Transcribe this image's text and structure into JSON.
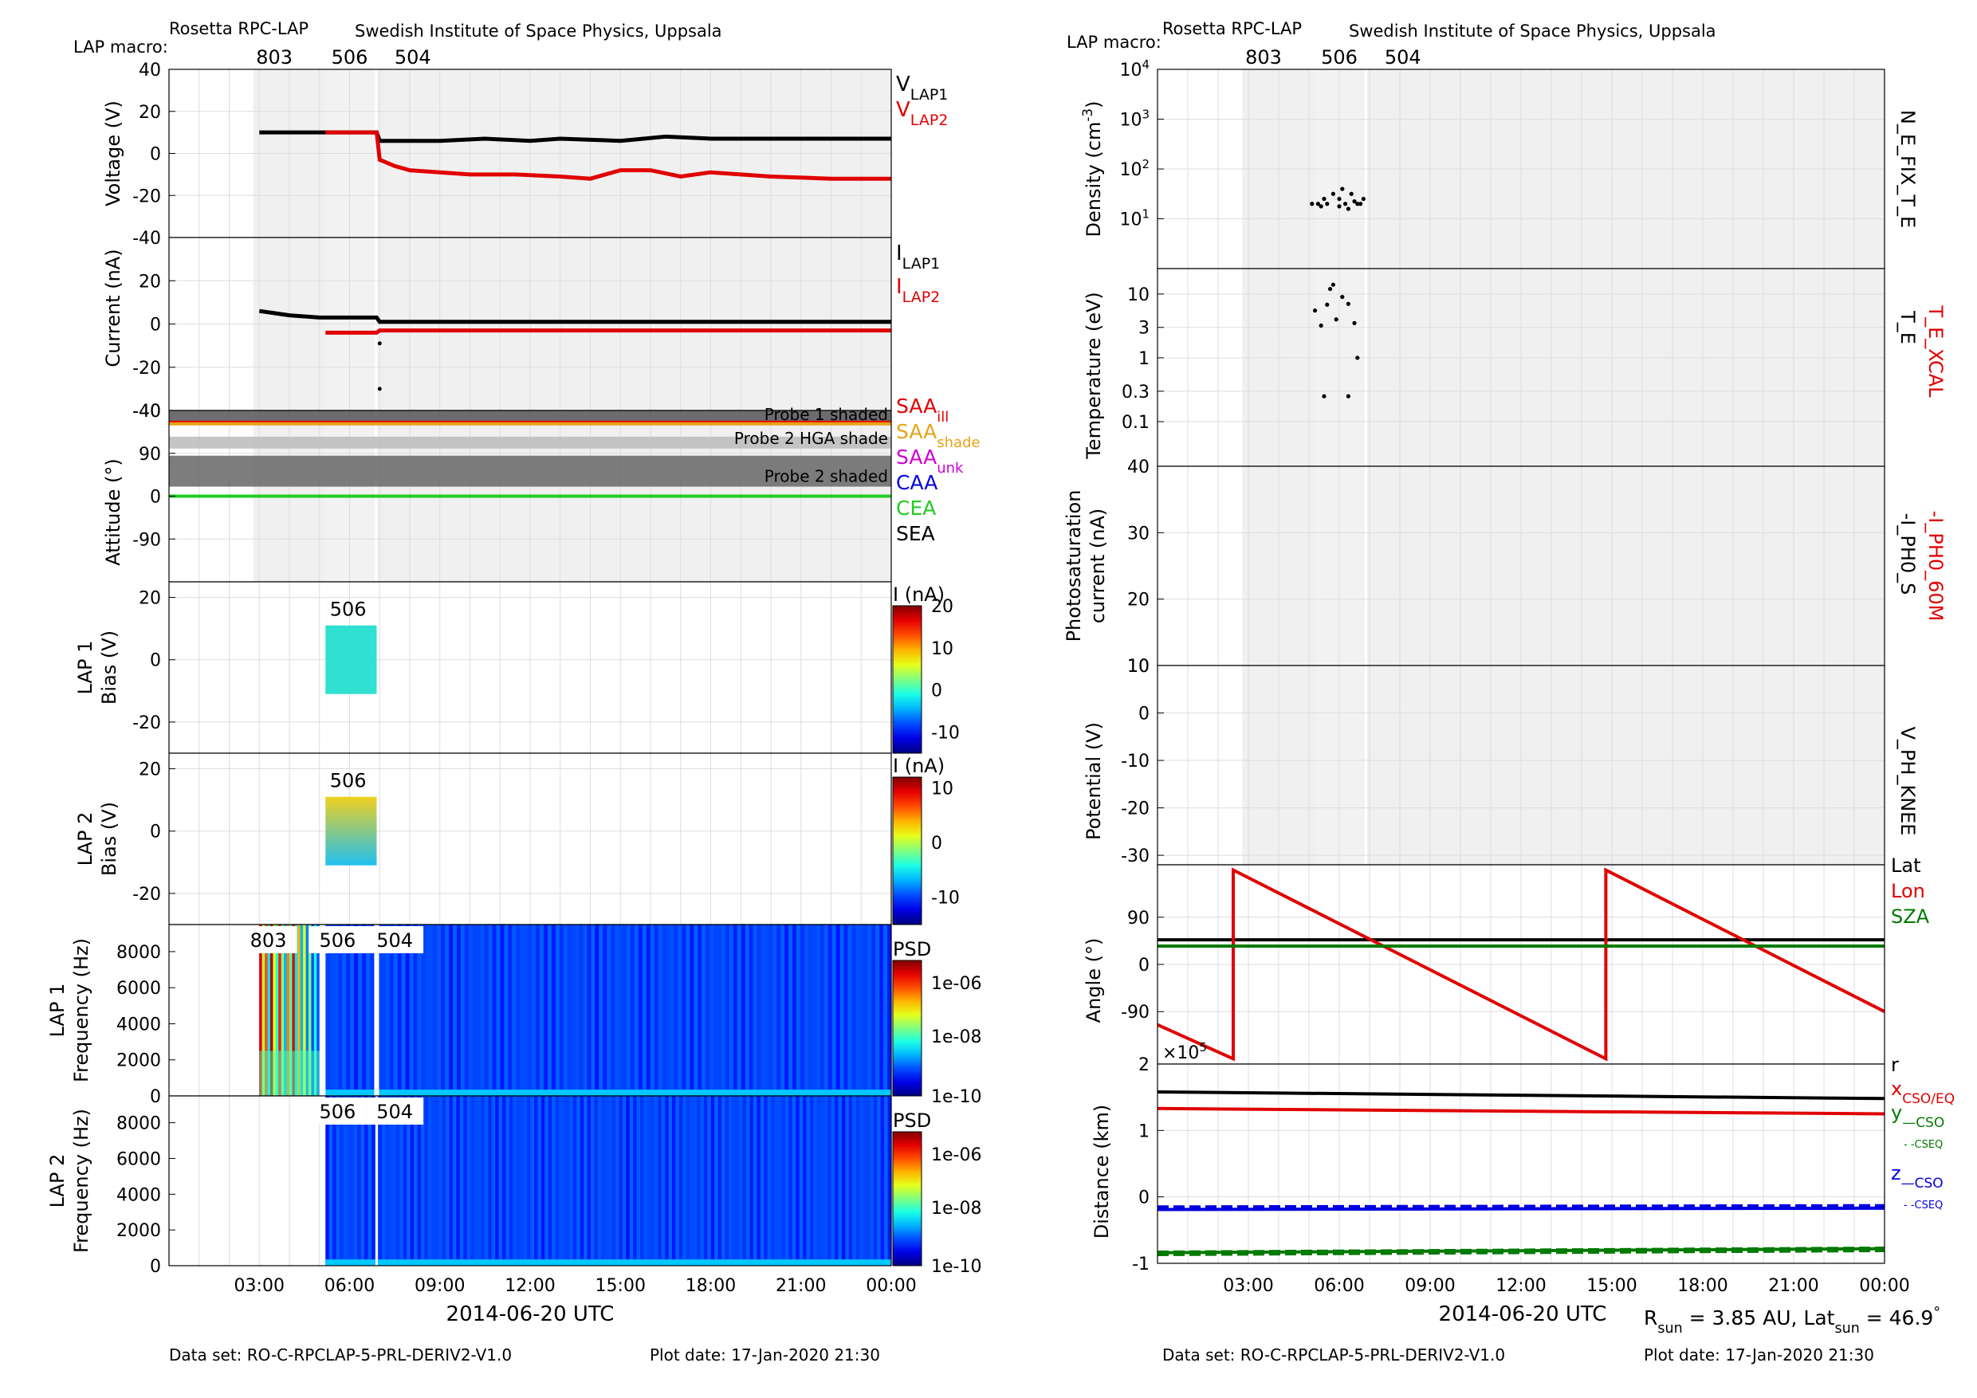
{
  "left": {
    "instrument": "Rosetta RPC-LAP",
    "institute": "Swedish Institute of Space Physics, Uppsala",
    "macro_label": "LAP macro:",
    "macros": [
      {
        "label": "803",
        "at": 3.5
      },
      {
        "label": "506",
        "at": 6.0
      },
      {
        "label": "504",
        "at": 8.1
      }
    ],
    "xlabel": "2014-06-20 UTC",
    "xticks": [
      "03:00",
      "06:00",
      "09:00",
      "12:00",
      "15:00",
      "18:00",
      "21:00",
      "00:00"
    ],
    "dataset": "Data set: RO-C-RPCLAP-5-PRL-DERIV2-V1.0",
    "plotdate": "Plot date: 17-Jan-2020 21:30"
  },
  "right": {
    "instrument": "Rosetta RPC-LAP",
    "institute": "Swedish Institute of Space Physics, Uppsala",
    "macro_label": "LAP macro:",
    "macros": [
      {
        "label": "803",
        "at": 3.5
      },
      {
        "label": "506",
        "at": 6.0
      },
      {
        "label": "504",
        "at": 8.1
      }
    ],
    "xlabel": "2014-06-20 UTC",
    "xticks": [
      "03:00",
      "06:00",
      "09:00",
      "12:00",
      "15:00",
      "18:00",
      "21:00",
      "00:00"
    ],
    "dataset": "Data set: RO-C-RPCLAP-5-PRL-DERIV2-V1.0",
    "plotdate": "Plot date: 17-Jan-2020 21:30",
    "footer_html": "R<tspan baseline-shift=\"sub\" font-size=\"70%\">sun</tspan> = 3.85 AU, Lat<tspan baseline-shift=\"sub\" font-size=\"70%\">sun</tspan> = 46.9<tspan baseline-shift=\"super\" font-size=\"70%\">°</tspan>"
  },
  "colors": {
    "black": "#000000",
    "red": "#e00000",
    "orange": "#e8a317",
    "magenta": "#d000d0",
    "blue": "#0000e0",
    "green": "#20cc20",
    "darkgreen": "#007a00",
    "shade": "#f0f0f0"
  },
  "chart_data": [
    {
      "type": "line",
      "panel": "voltage",
      "ylabel": "Voltage (V)",
      "xlabel": "2014-06-20 UTC",
      "xlim_hours": [
        0,
        24
      ],
      "ylim": [
        -40,
        40
      ],
      "yticks": [
        -40,
        -20,
        0,
        20,
        40
      ],
      "series": [
        {
          "name": "V_LAP1",
          "label_main": "V",
          "label_sub": "LAP1",
          "color": "black",
          "x": [
            3.0,
            4.5,
            5.2,
            6.0,
            6.9,
            7.0,
            8.0,
            9.0,
            10.5,
            12.0,
            13.0,
            15.0,
            16.5,
            18.0,
            20.0,
            22.0,
            24.0
          ],
          "y": [
            10,
            10,
            10,
            10,
            10,
            6,
            6,
            6,
            7,
            6,
            7,
            6,
            8,
            7,
            7,
            7,
            7
          ]
        },
        {
          "name": "V_LAP2",
          "label_main": "V",
          "label_sub": "LAP2",
          "color": "red",
          "x": [
            5.2,
            6.0,
            6.9,
            7.0,
            7.5,
            8.0,
            9.0,
            10.0,
            11.5,
            13.0,
            14.0,
            15.0,
            16.0,
            17.0,
            18.0,
            20.0,
            22.0,
            24.0
          ],
          "y": [
            10,
            10,
            10,
            -3,
            -6,
            -8,
            -9,
            -10,
            -10,
            -11,
            -12,
            -8,
            -8,
            -11,
            -9,
            -11,
            -12,
            -12
          ]
        }
      ],
      "legend": [
        "V_LAP1",
        "V_LAP2"
      ]
    },
    {
      "type": "line",
      "panel": "current",
      "ylabel": "Current (nA)",
      "ylim": [
        -40,
        40
      ],
      "yticks": [
        -40,
        -20,
        0,
        20
      ],
      "series": [
        {
          "name": "I_LAP1",
          "label_main": "I",
          "label_sub": "LAP1",
          "color": "black",
          "x": [
            3.0,
            3.5,
            4.0,
            4.5,
            5.0,
            6.0,
            6.9,
            7.0,
            12.0,
            24.0
          ],
          "y": [
            6,
            5,
            4,
            3.5,
            3,
            3,
            3,
            1,
            1,
            1
          ]
        },
        {
          "name": "I_LAP2",
          "label_main": "I",
          "label_sub": "LAP2",
          "color": "red",
          "x": [
            5.2,
            6.9,
            7.0,
            24.0
          ],
          "y": [
            -4,
            -4,
            -3,
            -3
          ]
        }
      ],
      "extra_points": [
        {
          "x": 7.0,
          "y": -9
        },
        {
          "x": 7.0,
          "y": -30
        }
      ]
    },
    {
      "type": "area",
      "panel": "attitude",
      "ylabel": "Attitude (°)",
      "ylim": [
        -180,
        180
      ],
      "yticks": [
        -90,
        0,
        90
      ],
      "bands": [
        {
          "text": "Probe 1 shaded",
          "from": 150,
          "to": 180,
          "color": "#555555"
        },
        {
          "text": "Probe 2 HGA shade",
          "from": 100,
          "to": 125,
          "color": "#bbbbbb"
        },
        {
          "text": "Probe 2 shaded",
          "from": 20,
          "to": 85,
          "color": "#666666"
        }
      ],
      "series": [
        {
          "name": "SAA_ill",
          "label_main": "SAA",
          "label_sub": "ill",
          "color": "red",
          "value": 155
        },
        {
          "name": "SAA_shade",
          "label_main": "SAA",
          "label_sub": "shade",
          "color": "orange",
          "value": 152
        },
        {
          "name": "SAA_unk",
          "label_main": "SAA",
          "label_sub": "unk",
          "color": "magenta",
          "value": null
        },
        {
          "name": "CAA",
          "label_main": "CAA",
          "label_sub": "",
          "color": "blue",
          "value": null
        },
        {
          "name": "CEA",
          "label_main": "CEA",
          "label_sub": "",
          "color": "green",
          "value": 0
        },
        {
          "name": "SEA",
          "label_main": "SEA",
          "label_sub": "",
          "color": "black",
          "value": null
        }
      ]
    },
    {
      "type": "heatmap",
      "panel": "lap1-bias",
      "ylabel": "LAP 1",
      "ylabel2": "Bias (V)",
      "ylim": [
        -30,
        25
      ],
      "yticks": [
        -20,
        0,
        20
      ],
      "macro_label": "506",
      "block": {
        "x0": 5.2,
        "x1": 6.9,
        "y0": -11,
        "y1": 11
      },
      "colorbar": {
        "title": "I (nA)",
        "ticks": [
          20,
          10,
          0,
          -10
        ],
        "range": [
          -15,
          20
        ]
      }
    },
    {
      "type": "heatmap",
      "panel": "lap2-bias",
      "ylabel": "LAP 2",
      "ylabel2": "Bias (V)",
      "ylim": [
        -30,
        25
      ],
      "yticks": [
        -20,
        0,
        20
      ],
      "macro_label": "506",
      "block": {
        "x0": 5.2,
        "x1": 6.9,
        "y0": -11,
        "y1": 11
      },
      "colorbar": {
        "title": "I (nA)",
        "ticks": [
          10,
          0,
          -10
        ],
        "range": [
          -15,
          12
        ]
      }
    },
    {
      "type": "heatmap",
      "panel": "lap1-psd",
      "ylabel": "LAP 1",
      "ylabel2": "Frequency (Hz)",
      "ylim": [
        0,
        9500
      ],
      "yticks": [
        0,
        2000,
        4000,
        6000,
        8000
      ],
      "macro_labels": [
        {
          "label": "803",
          "at": 3.3
        },
        {
          "label": "506",
          "at": 5.6
        },
        {
          "label": "504",
          "at": 7.5
        }
      ],
      "colorbar": {
        "title": "PSD",
        "ticks": [
          "1e-06",
          "1e-08",
          "1e-10"
        ]
      }
    },
    {
      "type": "heatmap",
      "panel": "lap2-psd",
      "ylabel": "LAP 2",
      "ylabel2": "Frequency (Hz)",
      "ylim": [
        0,
        9500
      ],
      "yticks": [
        0,
        2000,
        4000,
        6000,
        8000
      ],
      "macro_labels": [
        {
          "label": "506",
          "at": 5.6
        },
        {
          "label": "504",
          "at": 7.5
        }
      ],
      "colorbar": {
        "title": "PSD",
        "ticks": [
          "1e-06",
          "1e-08",
          "1e-10"
        ]
      }
    },
    {
      "type": "scatter",
      "panel": "density",
      "ylabel": "Density (cm⁻³)",
      "ylabel_html": "Density (cm<tspan baseline-shift=\"super\" font-size=\"70%\">-3</tspan>)",
      "yscale": "log",
      "ylim_exp": [
        0,
        4
      ],
      "yticks_exp": [
        1,
        2,
        3,
        4
      ],
      "right_label": "N_E_FIX_T_E",
      "points": [
        {
          "x": 5.1,
          "y": 1.3
        },
        {
          "x": 5.3,
          "y": 1.3
        },
        {
          "x": 5.5,
          "y": 1.4
        },
        {
          "x": 5.6,
          "y": 1.3
        },
        {
          "x": 5.8,
          "y": 1.5
        },
        {
          "x": 6.0,
          "y": 1.4
        },
        {
          "x": 6.1,
          "y": 1.6
        },
        {
          "x": 6.2,
          "y": 1.3
        },
        {
          "x": 6.3,
          "y": 1.2
        },
        {
          "x": 6.4,
          "y": 1.5
        },
        {
          "x": 6.5,
          "y": 1.35
        },
        {
          "x": 6.7,
          "y": 1.3
        },
        {
          "x": 6.8,
          "y": 1.4
        },
        {
          "x": 5.4,
          "y": 1.25
        },
        {
          "x": 6.0,
          "y": 1.25
        },
        {
          "x": 6.6,
          "y": 1.3
        }
      ]
    },
    {
      "type": "scatter",
      "panel": "temperature",
      "ylabel": "Temperature (eV)",
      "yscale": "log",
      "ylim": [
        0.02,
        25
      ],
      "yticks": [
        {
          "v": 0.1,
          "label": "0.1"
        },
        {
          "v": 0.3,
          "label": "0.3"
        },
        {
          "v": 1,
          "label": "1"
        },
        {
          "v": 3,
          "label": "3"
        },
        {
          "v": 10,
          "label": "10"
        }
      ],
      "right_label": "T_E",
      "right_label2": "T_E_XCAL",
      "points": [
        {
          "x": 5.2,
          "y": 5.5
        },
        {
          "x": 5.4,
          "y": 3.2
        },
        {
          "x": 5.6,
          "y": 6.8
        },
        {
          "x": 5.7,
          "y": 12
        },
        {
          "x": 5.9,
          "y": 4.0
        },
        {
          "x": 6.1,
          "y": 9.0
        },
        {
          "x": 6.3,
          "y": 7.0
        },
        {
          "x": 6.5,
          "y": 3.5
        },
        {
          "x": 6.6,
          "y": 1.0
        },
        {
          "x": 5.5,
          "y": 0.25
        },
        {
          "x": 6.3,
          "y": 0.25
        },
        {
          "x": 5.8,
          "y": 14
        }
      ]
    },
    {
      "type": "line",
      "panel": "photosaturation",
      "ylabel": "Photosaturation",
      "ylabel2": "current (nA)",
      "ylim": [
        10,
        40
      ],
      "yticks": [
        10,
        20,
        30,
        40
      ],
      "right_label": "-I_PH0_S",
      "right_label2": "-I_PH0_60M",
      "series": []
    },
    {
      "type": "line",
      "panel": "potential",
      "ylabel": "Potential (V)",
      "ylim": [
        -32,
        10
      ],
      "yticks": [
        -30,
        -20,
        -10,
        0,
        10
      ],
      "right_label": "V_PH_KNEE",
      "series": []
    },
    {
      "type": "line",
      "panel": "angle",
      "ylabel": "Angle (°)",
      "ylim": [
        -190,
        190
      ],
      "yticks": [
        -90,
        0,
        90
      ],
      "series": [
        {
          "name": "Lat",
          "color": "black",
          "x": [
            0,
            24
          ],
          "y": [
            47,
            47
          ]
        },
        {
          "name": "Lon",
          "color": "red",
          "x": [
            0,
            2.5,
            2.5,
            14.8,
            14.8,
            24
          ],
          "y": [
            -115,
            -180,
            180,
            -180,
            180,
            -90
          ]
        },
        {
          "name": "SZA",
          "color": "darkgreen",
          "x": [
            0,
            24
          ],
          "y": [
            35,
            35
          ]
        }
      ]
    },
    {
      "type": "line",
      "panel": "distance",
      "ylabel": "Distance (km)",
      "ylim": [
        -1,
        2
      ],
      "yticks": [
        -1,
        0,
        1,
        2
      ],
      "multiplier": "×10",
      "multiplier_exp": "5",
      "series": [
        {
          "name": "r",
          "color": "black",
          "x": [
            0,
            24
          ],
          "y": [
            1.58,
            1.48
          ]
        },
        {
          "name": "x_CSO/EQ",
          "color": "red",
          "x": [
            0,
            24
          ],
          "y": [
            1.33,
            1.25
          ]
        },
        {
          "name": "y_CSO",
          "color": "darkgreen",
          "x": [
            0,
            24
          ],
          "y": [
            -0.84,
            -0.78
          ]
        },
        {
          "name": "y_CSEQ",
          "color": "darkgreen",
          "dash": true,
          "x": [
            0,
            24
          ],
          "y": [
            -0.85,
            -0.79
          ]
        },
        {
          "name": "z_CSO",
          "color": "blue",
          "x": [
            0,
            24
          ],
          "y": [
            -0.19,
            -0.17
          ]
        },
        {
          "name": "z_CSEQ",
          "color": "blue",
          "dash": true,
          "x": [
            0,
            24
          ],
          "y": [
            -0.17,
            -0.15
          ]
        }
      ],
      "legend": [
        {
          "main": "r",
          "sub": "",
          "color": "black"
        },
        {
          "main": "x",
          "sub": "CSO/EQ",
          "color": "red"
        },
        {
          "main": "y",
          "sub": "—CSO",
          "color": "darkgreen"
        },
        {
          "main": "",
          "sub": "- -CSEQ",
          "color": "darkgreen"
        },
        {
          "main": "z",
          "sub": "—CSO",
          "color": "blue"
        },
        {
          "main": "",
          "sub": "- -CSEQ",
          "color": "blue"
        }
      ]
    }
  ]
}
